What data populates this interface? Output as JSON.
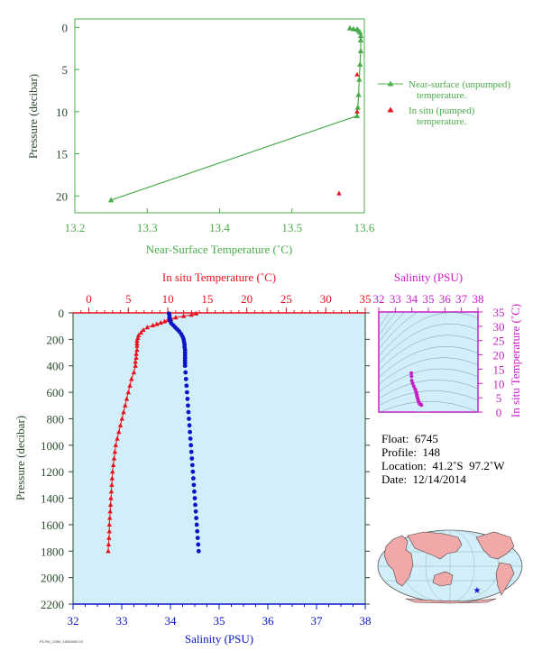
{
  "colors": {
    "green": "#4aab4a",
    "red": "#e8121d",
    "blue": "#0a14c8",
    "magenta": "#c81ec8",
    "axis_dark": "#2c4a2c",
    "plot_bg": "#d2eef8",
    "land": "#f0a8a8",
    "ocean": "#d2eef8"
  },
  "chart_data": [
    {
      "type": "line",
      "xlabel": "Near-Surface Temperature (˚C)",
      "ylabel": "Pressure (decibar)",
      "xlim": [
        13.2,
        13.6
      ],
      "ylim": [
        22,
        -1
      ],
      "xticks": [
        "13.2",
        "13.3",
        "13.4",
        "13.5",
        "13.6"
      ],
      "yticks": [
        "0",
        "5",
        "10",
        "15",
        "20"
      ],
      "series": [
        {
          "name": "Near-surface (unpumped) temperature.",
          "color": "#4aab4a",
          "marker": "triangle",
          "points": [
            [
              13.58,
              0.1
            ],
            [
              13.585,
              0.2
            ],
            [
              13.59,
              0.25
            ],
            [
              13.592,
              0.4
            ],
            [
              13.594,
              0.6
            ],
            [
              13.595,
              1.0
            ],
            [
              13.595,
              1.5
            ],
            [
              13.595,
              2.8
            ],
            [
              13.594,
              4.4
            ],
            [
              13.593,
              6.2
            ],
            [
              13.592,
              8.0
            ],
            [
              13.591,
              9.5
            ],
            [
              13.59,
              10.5
            ],
            [
              13.25,
              20.5
            ]
          ]
        },
        {
          "name": "In situ (pumped) temperature.",
          "color": "#e8121d",
          "marker": "triangle",
          "points": [
            [
              13.59,
              5.6
            ],
            [
              13.59,
              10.0
            ],
            [
              13.565,
              19.7
            ]
          ]
        }
      ],
      "legend": [
        {
          "label_lines": [
            "Near-surface (unpumped)",
            "temperature."
          ]
        },
        {
          "label_lines": [
            "In situ (pumped)",
            "temperature."
          ]
        }
      ]
    },
    {
      "type": "line",
      "top_xlabel": "In situ Temperature (˚C)",
      "bottom_xlabel": "Salinity (PSU)",
      "ylabel": "Pressure (decibar)",
      "temp_xlim": [
        -2,
        35
      ],
      "sal_xlim": [
        32,
        38
      ],
      "ylim": [
        2200,
        0
      ],
      "temp_ticks": [
        "0",
        "5",
        "10",
        "15",
        "20",
        "25",
        "30",
        "35"
      ],
      "sal_ticks": [
        "32",
        "33",
        "34",
        "35",
        "36",
        "37",
        "38"
      ],
      "yticks": [
        "0",
        "200",
        "400",
        "600",
        "800",
        "1000",
        "1200",
        "1400",
        "1600",
        "1800",
        "2000",
        "2200"
      ],
      "temperature": {
        "pressure": [
          5,
          15,
          25,
          35,
          45,
          55,
          65,
          75,
          85,
          95,
          110,
          130,
          150,
          170,
          190,
          210,
          230,
          250,
          280,
          310,
          340,
          370,
          400,
          450,
          500,
          550,
          600,
          650,
          700,
          750,
          800,
          850,
          900,
          950,
          1000,
          1050,
          1100,
          1150,
          1200,
          1250,
          1300,
          1350,
          1400,
          1450,
          1500,
          1550,
          1600,
          1650,
          1700,
          1750,
          1800
        ],
        "values": [
          13.6,
          13.0,
          12.0,
          11.0,
          10.4,
          10.0,
          9.6,
          9.1,
          8.6,
          8.1,
          7.4,
          6.9,
          6.6,
          6.3,
          6.2,
          6.1,
          6.1,
          6.1,
          6.1,
          6.0,
          6.0,
          5.9,
          5.9,
          5.7,
          5.4,
          5.2,
          5.0,
          4.8,
          4.6,
          4.4,
          4.2,
          4.0,
          3.8,
          3.6,
          3.4,
          3.3,
          3.2,
          3.1,
          3.0,
          2.95,
          2.9,
          2.85,
          2.8,
          2.75,
          2.7,
          2.65,
          2.6,
          2.6,
          2.55,
          2.5,
          2.45
        ]
      },
      "salinity": {
        "pressure": [
          5,
          20,
          35,
          50,
          65,
          80,
          95,
          110,
          125,
          140,
          160,
          180,
          200,
          220,
          240,
          260,
          280,
          300,
          320,
          340,
          360,
          380,
          400,
          450,
          500,
          550,
          600,
          650,
          700,
          750,
          800,
          850,
          900,
          950,
          1000,
          1050,
          1100,
          1150,
          1200,
          1250,
          1300,
          1350,
          1400,
          1450,
          1500,
          1550,
          1600,
          1650,
          1700,
          1750,
          1800
        ],
        "values": [
          33.97,
          33.98,
          33.98,
          33.99,
          34.0,
          34.02,
          34.06,
          34.1,
          34.14,
          34.18,
          34.22,
          34.25,
          34.27,
          34.28,
          34.29,
          34.29,
          34.3,
          34.3,
          34.3,
          34.3,
          34.3,
          34.3,
          34.3,
          34.31,
          34.32,
          34.33,
          34.34,
          34.35,
          34.36,
          34.37,
          34.38,
          34.39,
          34.4,
          34.41,
          34.42,
          34.43,
          34.44,
          34.45,
          34.46,
          34.47,
          34.48,
          34.49,
          34.5,
          34.51,
          34.52,
          34.53,
          34.54,
          34.55,
          34.56,
          34.57,
          34.58
        ]
      }
    },
    {
      "type": "scatter",
      "title": "Salinity (PSU)",
      "ylabel": "In situ Temperature (˚C)",
      "xlim": [
        32,
        38
      ],
      "ylim": [
        0,
        35
      ],
      "xticks": [
        "32",
        "33",
        "34",
        "35",
        "36",
        "37",
        "38"
      ],
      "yticks": [
        "0",
        "5",
        "10",
        "15",
        "20",
        "25",
        "30",
        "35"
      ],
      "points": [
        [
          33.97,
          13.6
        ],
        [
          33.98,
          12.5
        ],
        [
          34.0,
          11.0
        ],
        [
          34.05,
          10.0
        ],
        [
          34.12,
          9.0
        ],
        [
          34.2,
          8.0
        ],
        [
          34.25,
          7.2
        ],
        [
          34.28,
          6.6
        ],
        [
          34.3,
          6.2
        ],
        [
          34.3,
          6.0
        ],
        [
          34.31,
          5.7
        ],
        [
          34.33,
          5.2
        ],
        [
          34.35,
          4.8
        ],
        [
          34.38,
          4.2
        ],
        [
          34.41,
          3.6
        ],
        [
          34.44,
          3.2
        ],
        [
          34.47,
          2.95
        ],
        [
          34.5,
          2.8
        ],
        [
          34.53,
          2.65
        ],
        [
          34.56,
          2.55
        ],
        [
          34.58,
          2.45
        ]
      ]
    }
  ],
  "float_info": {
    "float": "Float:  6745",
    "profile": "Profile:  148",
    "location": "Location:  41.2˚S  97.2˚W",
    "date": "Date:  12/14/2014"
  },
  "footer_id": "P1790_C000_1000000174",
  "map": {
    "marker_icon": "star-icon"
  }
}
